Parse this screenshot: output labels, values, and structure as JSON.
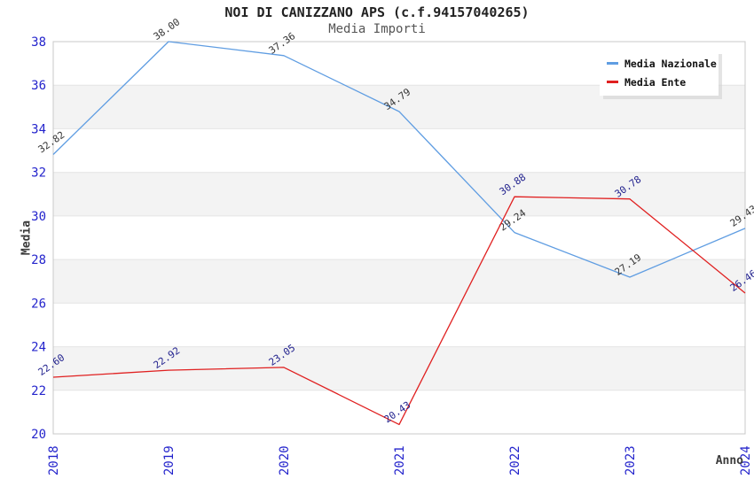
{
  "header": {
    "title": "NOI DI CANIZZANO APS (c.f.94157040265)",
    "subtitle": "Media Importi"
  },
  "axes": {
    "y_title": "Media",
    "x_title": "Anno"
  },
  "legend": {
    "items": [
      {
        "label": "Media Nazionale",
        "color": "#5f9de2"
      },
      {
        "label": "Media Ente",
        "color": "#e02020"
      }
    ]
  },
  "chart_data": {
    "type": "line",
    "title": "NOI DI CANIZZANO APS (c.f.94157040265)",
    "subtitle": "Media Importi",
    "xlabel": "Anno",
    "ylabel": "Media",
    "categories": [
      "2018",
      "2019",
      "2020",
      "2021",
      "2022",
      "2023",
      "2024"
    ],
    "series": [
      {
        "name": "Media Nazionale",
        "color": "#5f9de2",
        "label_color": "#333333",
        "values": [
          32.82,
          38.0,
          37.36,
          34.79,
          29.24,
          27.19,
          29.43
        ]
      },
      {
        "name": "Media Ente",
        "color": "#e02020",
        "label_color": "#22228e",
        "values": [
          22.6,
          22.92,
          23.05,
          20.43,
          30.88,
          30.78,
          26.46
        ]
      }
    ],
    "ylim": [
      20,
      38
    ],
    "ytick_step": 2,
    "grid": true,
    "band_color": "#f3f3f3",
    "gridline_color": "#e4e4e4",
    "border_color": "#c8c8c8",
    "tick_label_color": "#2424cc",
    "legend_position": "top-right",
    "point_label_decimals": 2
  }
}
